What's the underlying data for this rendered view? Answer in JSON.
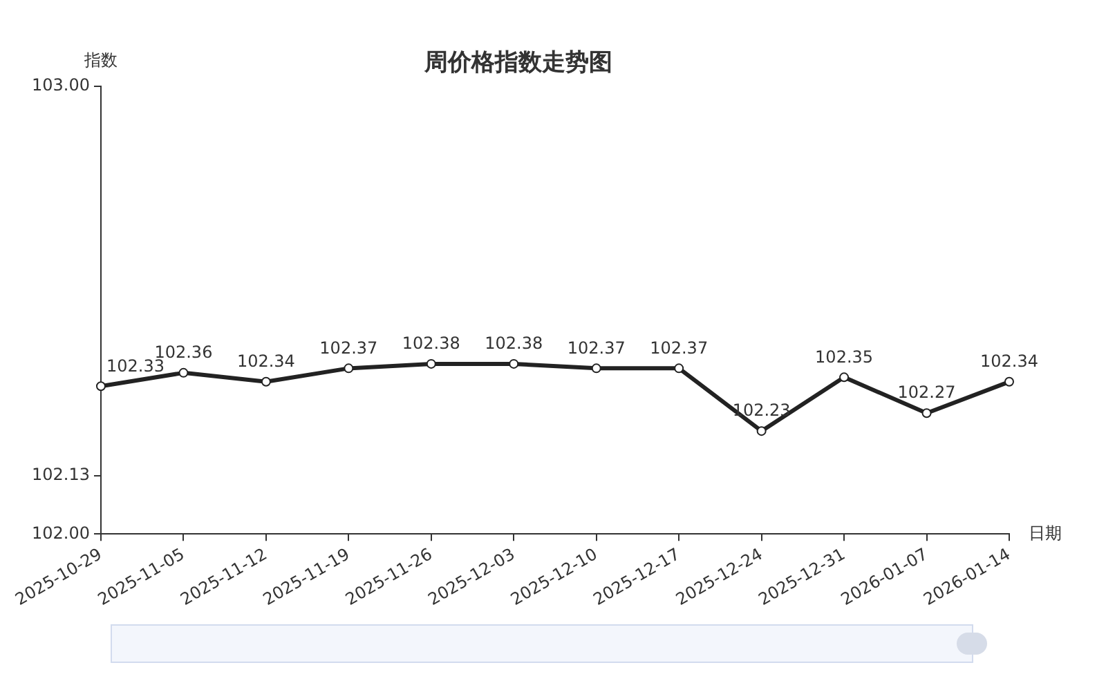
{
  "chart_data": {
    "type": "line",
    "title": "周价格指数走势图",
    "xlabel": "日期",
    "ylabel": "指数",
    "categories": [
      "2025-10-29",
      "2025-11-05",
      "2025-11-12",
      "2025-11-19",
      "2025-11-26",
      "2025-12-03",
      "2025-12-10",
      "2025-12-17",
      "2025-12-24",
      "2025-12-31",
      "2026-01-07",
      "2026-01-14"
    ],
    "series": [
      {
        "color": "#222222",
        "values": [
          102.33,
          102.36,
          102.34,
          102.37,
          102.38,
          102.38,
          102.37,
          102.37,
          102.23,
          102.35,
          102.27,
          102.34
        ]
      }
    ],
    "ylim": [
      102,
      103
    ],
    "yticks": [
      {
        "value": 102,
        "label": "102.00"
      },
      {
        "value": 102.13,
        "label": "102.13"
      },
      {
        "value": 103,
        "label": "103.00"
      }
    ],
    "data_labels": true,
    "grid": false,
    "legend": false,
    "marker": "circle",
    "line_style": "solid"
  }
}
